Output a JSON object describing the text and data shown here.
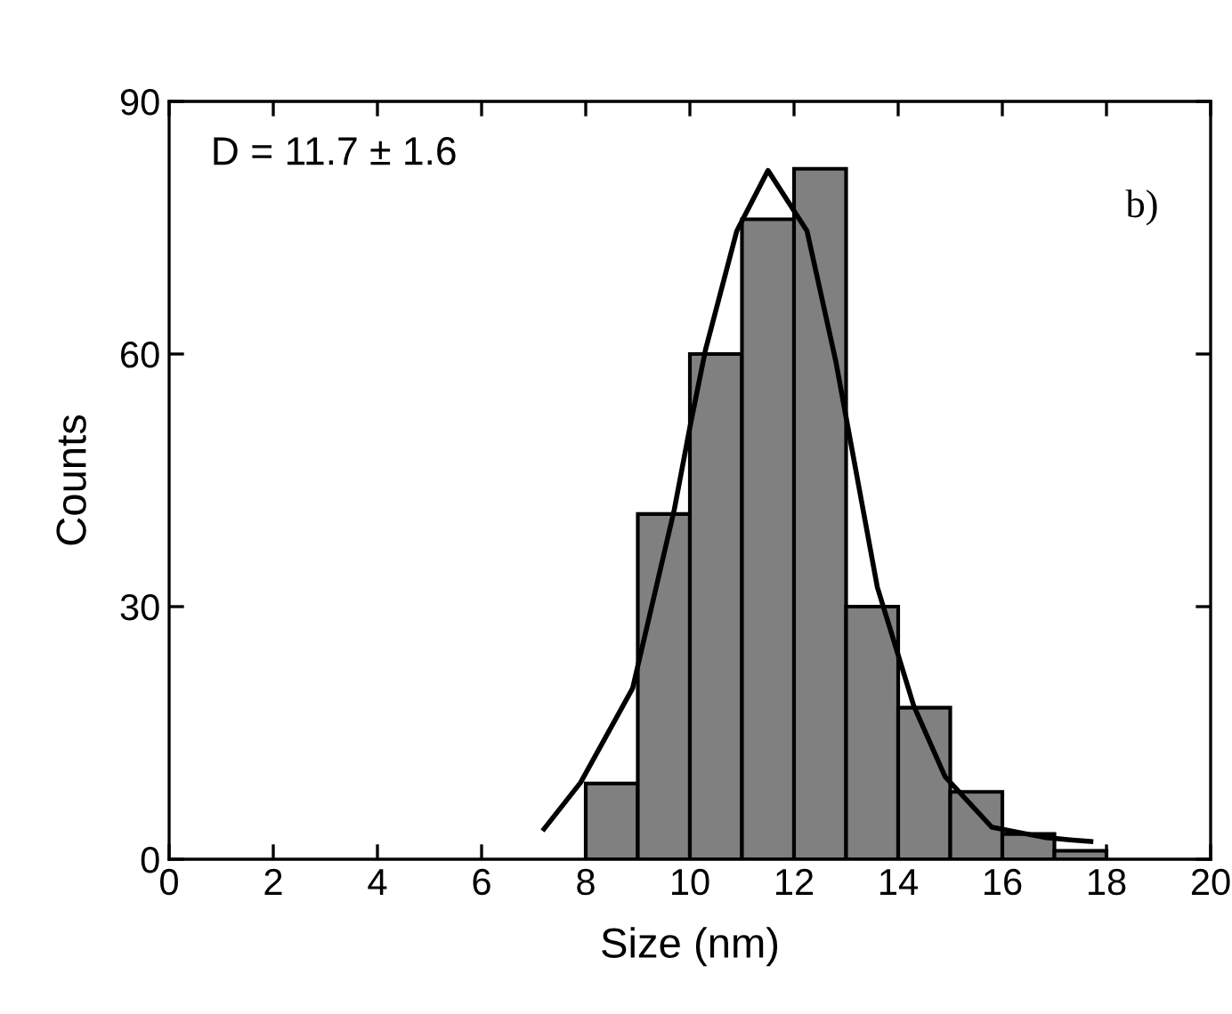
{
  "chart_data": {
    "type": "histogram",
    "xlabel": "Size (nm)",
    "ylabel": "Counts",
    "bins": [
      8,
      9,
      10,
      11,
      12,
      13,
      14,
      15,
      16,
      17,
      18
    ],
    "values": [
      9,
      41,
      60,
      76,
      82,
      30,
      18,
      8,
      3,
      1
    ],
    "color": "#808080",
    "series": [
      {
        "type": "line",
        "color": "#000000",
        "x": [
          7.2,
          7.9,
          8.9,
          9.7,
          10.0,
          10.3,
          10.9,
          11.5,
          12.25,
          12.8,
          13.6,
          14.3,
          14.9,
          15.8,
          16.8,
          17.3,
          17.7
        ],
        "values": [
          3.6,
          9.1,
          20.3,
          41.5,
          51.3,
          60.5,
          74.6,
          81.8,
          74.6,
          59.2,
          32.3,
          18.2,
          9.8,
          3.8,
          2.6,
          2.3,
          2.1
        ]
      }
    ],
    "annotations": [
      "D = 11.7 ± 1.6",
      "b)"
    ],
    "xlim": [
      0,
      20
    ],
    "xticks": [
      0,
      2,
      4,
      6,
      8,
      10,
      12,
      14,
      16,
      18,
      20
    ],
    "ylim": [
      0,
      90
    ],
    "yticks": [
      0,
      30,
      60,
      90
    ],
    "grid": false,
    "legend": false
  }
}
